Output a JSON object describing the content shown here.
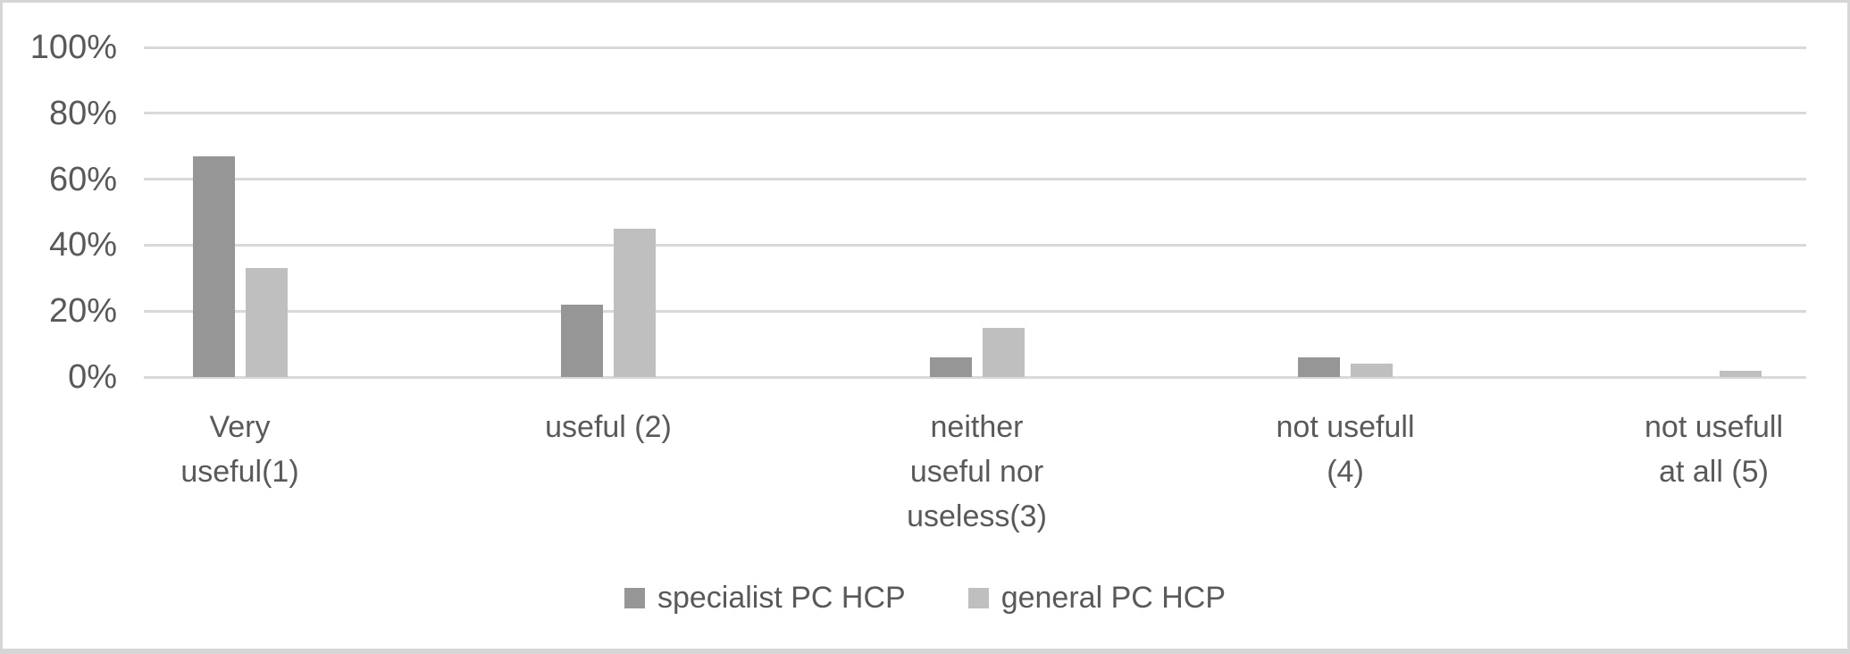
{
  "figure": {
    "background_color": "#ffffff",
    "border_color": "#d6d6d6",
    "gridline_color": "#d9d9d9",
    "text_color": "#595959"
  },
  "chart_data": {
    "type": "bar",
    "title": "",
    "xlabel": "",
    "ylabel": "",
    "unit": "%",
    "categories": [
      "Very useful(1)",
      "useful (2)",
      "neither useful nor useless(3)",
      "not usefull (4)",
      "not usefull at all (5)"
    ],
    "category_lines": [
      [
        "Very",
        "useful(1)"
      ],
      [
        "useful (2)"
      ],
      [
        "neither",
        "useful nor",
        "useless(3)"
      ],
      [
        "not usefull",
        "(4)"
      ],
      [
        "not usefull",
        "at all (5)"
      ]
    ],
    "series": [
      {
        "name": "specialist PC HCP",
        "color": "#969696",
        "values": [
          67,
          22,
          6,
          6,
          0
        ]
      },
      {
        "name": "general PC HCP",
        "color": "#bfbfbf",
        "values": [
          33,
          45,
          15,
          4,
          2
        ]
      }
    ],
    "ylim": [
      0,
      100
    ],
    "y_ticks": [
      "100%",
      "80%",
      "60%",
      "40%",
      "20%",
      "0%"
    ],
    "y_tick_values": [
      100,
      80,
      60,
      40,
      20,
      0
    ],
    "grid": true,
    "legend_position": "bottom-center"
  }
}
